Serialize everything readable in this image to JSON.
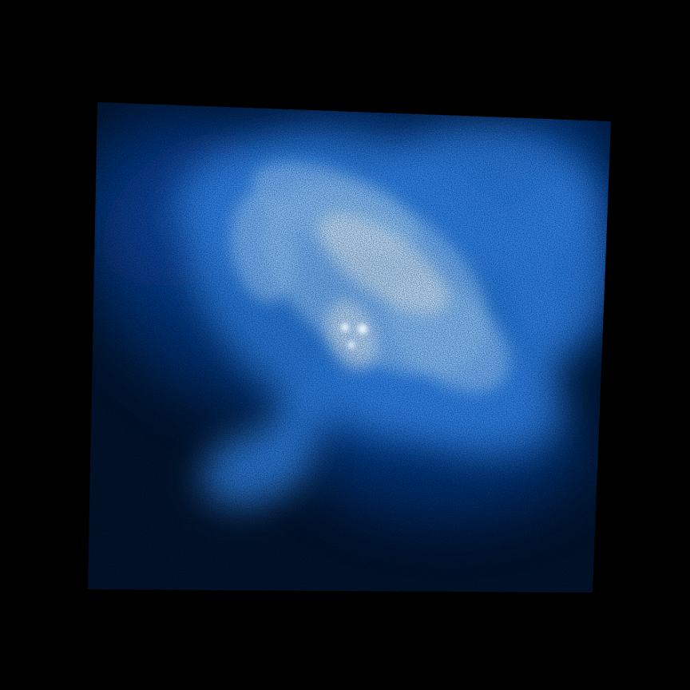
{
  "image": {
    "subject": "nebula",
    "background_color": "#000000",
    "field_color": "#02142e",
    "glow_colors": {
      "outer": "#0a55c8",
      "mid": "#2f86f0",
      "inner": "#8cc4ff",
      "core": "#eaf6ff"
    }
  }
}
